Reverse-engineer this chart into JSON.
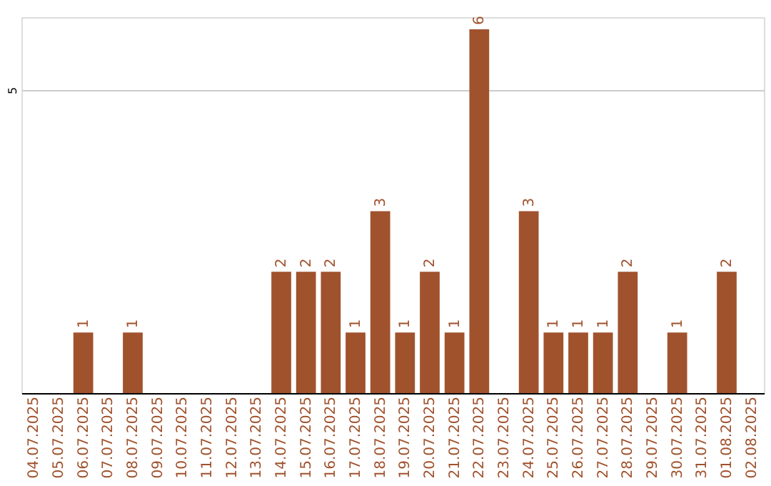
{
  "chart_data": {
    "type": "bar",
    "categories": [
      "04.07.2025",
      "05.07.2025",
      "06.07.2025",
      "07.07.2025",
      "08.07.2025",
      "09.07.2025",
      "10.07.2025",
      "11.07.2025",
      "12.07.2025",
      "13.07.2025",
      "14.07.2025",
      "15.07.2025",
      "16.07.2025",
      "17.07.2025",
      "18.07.2025",
      "19.07.2025",
      "20.07.2025",
      "21.07.2025",
      "22.07.2025",
      "23.07.2025",
      "24.07.2025",
      "25.07.2025",
      "26.07.2025",
      "27.07.2025",
      "28.07.2025",
      "29.07.2025",
      "30.07.2025",
      "31.07.2025",
      "01.08.2025",
      "02.08.2025"
    ],
    "values": [
      0,
      0,
      1,
      0,
      1,
      0,
      0,
      0,
      0,
      0,
      2,
      2,
      2,
      1,
      3,
      1,
      2,
      1,
      6,
      0,
      3,
      1,
      1,
      1,
      2,
      0,
      1,
      0,
      2,
      0
    ],
    "value_labels": [
      null,
      null,
      "1",
      null,
      "1",
      null,
      null,
      null,
      null,
      null,
      "2",
      "2",
      "2",
      "1",
      "3",
      "1",
      "2",
      "1",
      "6",
      null,
      "3",
      "1",
      "1",
      "1",
      "2",
      null,
      "1",
      null,
      "2",
      null
    ],
    "color": "#a0522d",
    "ylim": [
      0,
      6.2
    ],
    "yticks": [
      5
    ],
    "grid": "y"
  }
}
